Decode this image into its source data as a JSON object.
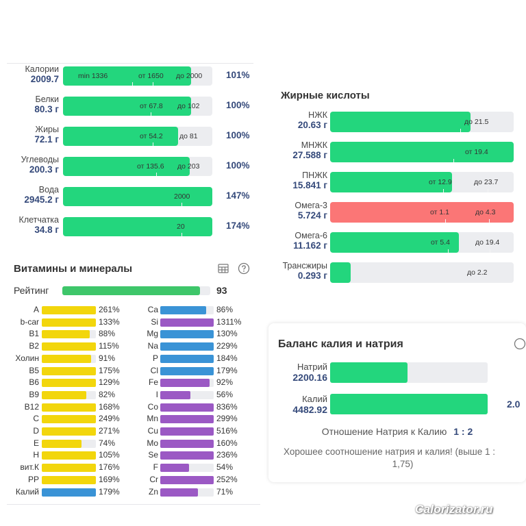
{
  "nutrients": [
    {
      "name": "Калории",
      "value": "2009.7",
      "fill": 0.858,
      "percent": "101%",
      "markers": [
        "min 1336",
        "от 1650",
        "до 2000"
      ]
    },
    {
      "name": "Белки",
      "value": "80.3 г",
      "fill": 0.858,
      "percent": "100%",
      "markers": [
        "от 67.8",
        "до 102"
      ]
    },
    {
      "name": "Жиры",
      "value": "72.1 г",
      "fill": 0.771,
      "percent": "100%",
      "markers": [
        "от 54.2",
        "до 81"
      ]
    },
    {
      "name": "Углеводы",
      "value": "200.3 г",
      "fill": 0.849,
      "percent": "100%",
      "markers": [
        "от 135.6",
        "до 203"
      ]
    },
    {
      "name": "Вода",
      "value": "2945.2 г",
      "fill": 1.0,
      "percent": "147%",
      "markers": [
        "2000"
      ]
    },
    {
      "name": "Клетчатка",
      "value": "34.8 г",
      "fill": 1.0,
      "percent": "174%",
      "markers": [
        "20"
      ]
    }
  ],
  "fatty_acids": {
    "title": "Жирные кислоты",
    "rows": [
      {
        "name": "НЖК",
        "value": "20.63 г",
        "fill": 0.765,
        "color": "#23d67d",
        "markers": [
          "до 21.5"
        ]
      },
      {
        "name": "МНЖК",
        "value": "27.588 г",
        "fill": 1.0,
        "color": "#23d67d",
        "markers": [
          "от 19.4"
        ]
      },
      {
        "name": "ПНЖК",
        "value": "15.841 г",
        "fill": 0.664,
        "color": "#23d67d",
        "markers": [
          "от 12.9",
          "до 23.7"
        ]
      },
      {
        "name": "Омега-3",
        "value": "5.724 г",
        "fill": 1.0,
        "color": "#fb7676",
        "markers": [
          "от 1.1",
          "до 4.3"
        ]
      },
      {
        "name": "Омега-6",
        "value": "11.162 г",
        "fill": 0.701,
        "color": "#23d67d",
        "markers": [
          "от 5.4",
          "до 19.4"
        ]
      },
      {
        "name": "Трансжиры",
        "value": "0.293 г",
        "fill": 0.112,
        "color": "#23d67d",
        "markers": [
          "до 2.2"
        ]
      }
    ]
  },
  "vitamins": {
    "title": "Витамины и минералы",
    "rating_label": "Рейтинг",
    "rating_value": "93",
    "rating_fill": 0.93,
    "left": [
      {
        "name": "A",
        "percent": "261%",
        "fill": 1.0,
        "color": "#f2d60c"
      },
      {
        "name": "b-car",
        "percent": "133%",
        "fill": 1.0,
        "color": "#f2d60c"
      },
      {
        "name": "B1",
        "percent": "88%",
        "fill": 0.88,
        "color": "#f2d60c"
      },
      {
        "name": "B2",
        "percent": "115%",
        "fill": 1.0,
        "color": "#f2d60c"
      },
      {
        "name": "Холин",
        "percent": "91%",
        "fill": 0.91,
        "color": "#f2d60c"
      },
      {
        "name": "B5",
        "percent": "175%",
        "fill": 1.0,
        "color": "#f2d60c"
      },
      {
        "name": "B6",
        "percent": "129%",
        "fill": 1.0,
        "color": "#f2d60c"
      },
      {
        "name": "B9",
        "percent": "82%",
        "fill": 0.82,
        "color": "#f2d60c"
      },
      {
        "name": "B12",
        "percent": "168%",
        "fill": 1.0,
        "color": "#f2d60c"
      },
      {
        "name": "C",
        "percent": "249%",
        "fill": 1.0,
        "color": "#f2d60c"
      },
      {
        "name": "D",
        "percent": "271%",
        "fill": 1.0,
        "color": "#f2d60c"
      },
      {
        "name": "E",
        "percent": "74%",
        "fill": 0.74,
        "color": "#f2d60c"
      },
      {
        "name": "H",
        "percent": "105%",
        "fill": 1.0,
        "color": "#f2d60c"
      },
      {
        "name": "вит.К",
        "percent": "176%",
        "fill": 1.0,
        "color": "#f2d60c"
      },
      {
        "name": "PP",
        "percent": "169%",
        "fill": 1.0,
        "color": "#f2d60c"
      },
      {
        "name": "Калий",
        "percent": "179%",
        "fill": 1.0,
        "color": "#3a93d6"
      }
    ],
    "right": [
      {
        "name": "Ca",
        "percent": "86%",
        "fill": 0.86,
        "color": "#3a93d6"
      },
      {
        "name": "Si",
        "percent": "1311%",
        "fill": 1.0,
        "color": "#9b59c4"
      },
      {
        "name": "Mg",
        "percent": "130%",
        "fill": 1.0,
        "color": "#3a93d6"
      },
      {
        "name": "Na",
        "percent": "229%",
        "fill": 1.0,
        "color": "#3a93d6"
      },
      {
        "name": "P",
        "percent": "184%",
        "fill": 1.0,
        "color": "#3a93d6"
      },
      {
        "name": "Cl",
        "percent": "179%",
        "fill": 1.0,
        "color": "#3a93d6"
      },
      {
        "name": "Fe",
        "percent": "92%",
        "fill": 0.92,
        "color": "#9b59c4"
      },
      {
        "name": "I",
        "percent": "56%",
        "fill": 0.56,
        "color": "#9b59c4"
      },
      {
        "name": "Co",
        "percent": "836%",
        "fill": 1.0,
        "color": "#9b59c4"
      },
      {
        "name": "Mn",
        "percent": "299%",
        "fill": 1.0,
        "color": "#9b59c4"
      },
      {
        "name": "Cu",
        "percent": "516%",
        "fill": 1.0,
        "color": "#9b59c4"
      },
      {
        "name": "Mo",
        "percent": "160%",
        "fill": 1.0,
        "color": "#9b59c4"
      },
      {
        "name": "Se",
        "percent": "236%",
        "fill": 1.0,
        "color": "#9b59c4"
      },
      {
        "name": "F",
        "percent": "54%",
        "fill": 0.54,
        "color": "#9b59c4"
      },
      {
        "name": "Cr",
        "percent": "252%",
        "fill": 1.0,
        "color": "#9b59c4"
      },
      {
        "name": "Zn",
        "percent": "71%",
        "fill": 0.71,
        "color": "#9b59c4"
      }
    ]
  },
  "potassium_balance": {
    "title": "Баланс калия и натрия",
    "sodium_label": "Натрий",
    "sodium_value": "2200.16",
    "sodium_fill": 0.49,
    "potassium_label": "Калий",
    "potassium_value": "4482.92",
    "potassium_fill": 1.0,
    "ratio_value_cut": "2.0",
    "ratio_label": "Отношение Натрия к Калию",
    "ratio_value": "1 : 2",
    "message_line1": "Хорошее соотношение натрия и калия! (выше 1 :",
    "message_line2": "1,75)"
  },
  "icons": {
    "table": "table-icon",
    "help": "help-icon"
  },
  "colors": {
    "green": "#23d67d",
    "red": "#fb7676",
    "yellow": "#f2d60c",
    "blue": "#3a93d6",
    "purple": "#9b59c4",
    "value_text": "#34497a"
  },
  "watermark": "Calorizator.ru"
}
